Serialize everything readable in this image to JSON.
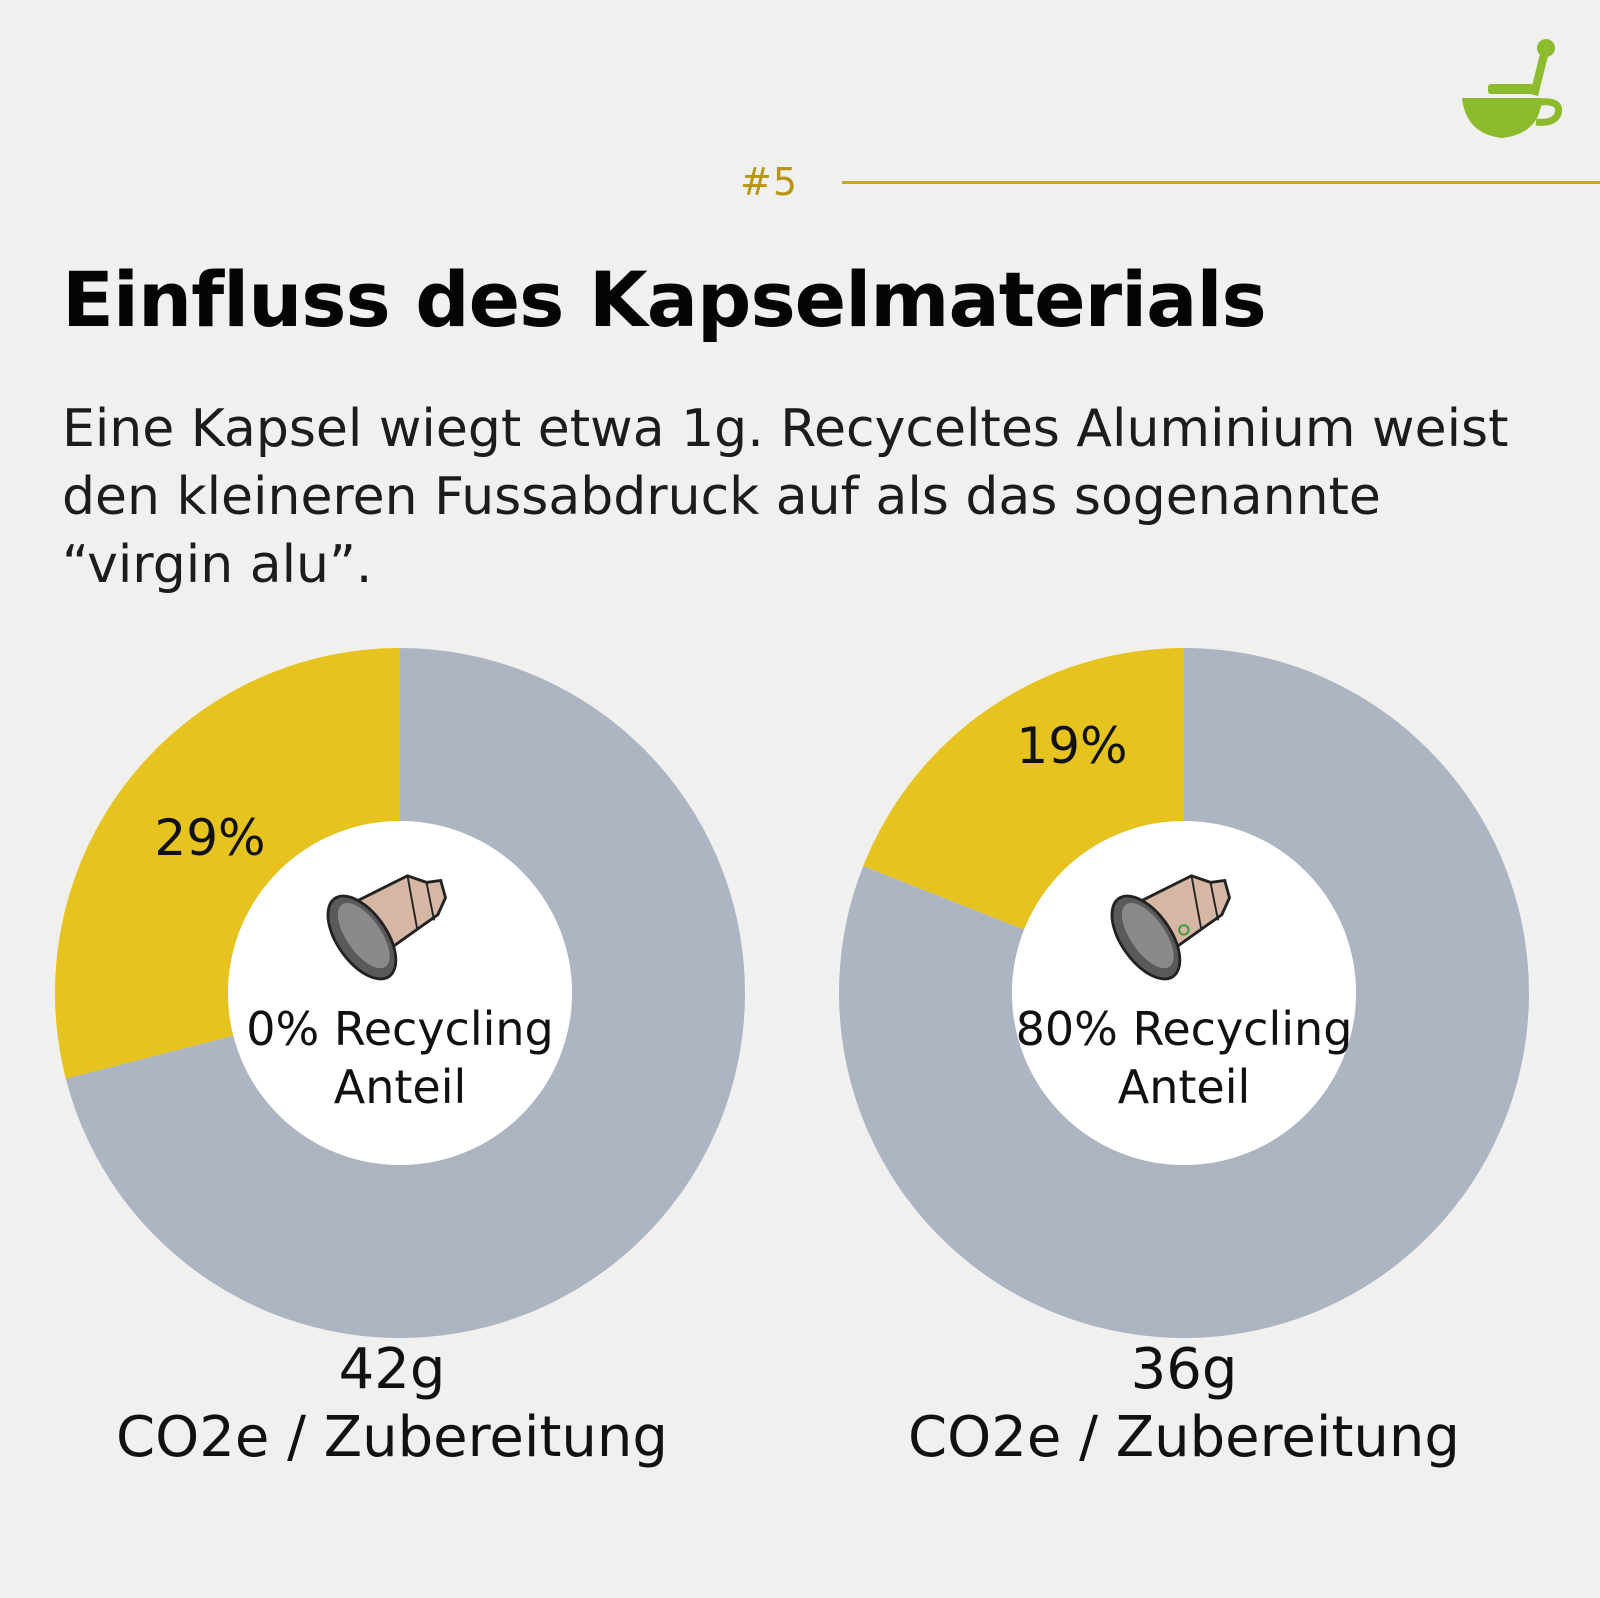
{
  "header": {
    "section_number": "#5",
    "title": "Einfluss des Kapselmaterials",
    "subtitle": "Eine Kapsel wiegt etwa 1g. Recyceltes Aluminium weist den kleineren Fussabdruck auf als das sogenannte “virgin alu”."
  },
  "colors": {
    "background": "#f0f0ef",
    "highlight": "#e6c31e",
    "rest": "#adb5c3",
    "accent": "#c9a623",
    "logo": "#8dbb2e"
  },
  "icons": {
    "logo": "bowl-icon",
    "capsule": "coffee-capsule-icon"
  },
  "chart_data": [
    {
      "type": "pie",
      "slices": [
        {
          "label": "29%",
          "value": 29,
          "color": "#e6c31e"
        },
        {
          "value": 71,
          "color": "#adb5c3"
        }
      ],
      "center_label": [
        "0% Recycling",
        "Anteil"
      ],
      "caption_value": "42g",
      "caption_unit": "CO2e / Zubereitung"
    },
    {
      "type": "pie",
      "slices": [
        {
          "label": "19%",
          "value": 19,
          "color": "#e6c31e"
        },
        {
          "value": 81,
          "color": "#adb5c3"
        }
      ],
      "center_label": [
        "80% Recycling",
        "Anteil"
      ],
      "caption_value": "36g",
      "caption_unit": "CO2e / Zubereitung"
    }
  ]
}
